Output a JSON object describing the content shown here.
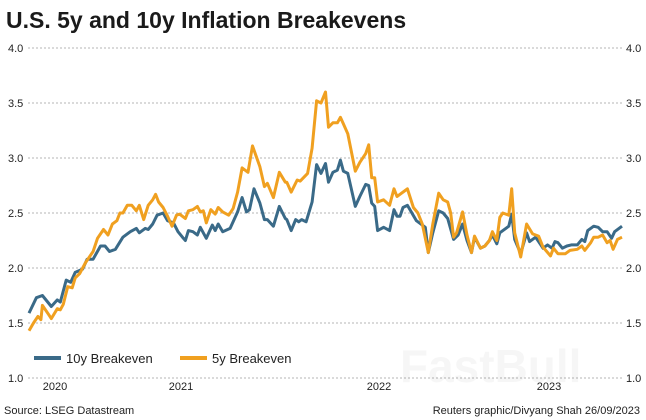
{
  "chart_data": {
    "type": "line",
    "title": "U.S. 5y and 10y Inflation Breakevens",
    "xlabel": "",
    "ylabel": "",
    "ylim": [
      1.0,
      4.0
    ],
    "yticks": [
      "1.0",
      "1.5",
      "2.0",
      "2.5",
      "3.0",
      "3.5",
      "4.0"
    ],
    "xticks": [
      "2020",
      "2021",
      "2022",
      "2023"
    ],
    "y_axis_sides": "both",
    "grid": "horizontal dashed",
    "legend_position": "bottom-left",
    "source": "Source: LSEG Datastream",
    "credit": "Reuters graphic/Divyang Shah 26/09/2023",
    "watermark": "FastBull",
    "series": [
      {
        "name": "10y Breakeven",
        "color": "#3a6a88",
        "points": [
          [
            2019.75,
            1.59
          ],
          [
            2019.8,
            1.73
          ],
          [
            2019.84,
            1.75
          ],
          [
            2019.9,
            1.65
          ],
          [
            2019.94,
            1.71
          ],
          [
            2019.96,
            1.69
          ],
          [
            2020.0,
            1.89
          ],
          [
            2020.03,
            1.87
          ],
          [
            2020.06,
            1.96
          ],
          [
            2020.11,
            1.99
          ],
          [
            2020.14,
            2.08
          ],
          [
            2020.18,
            2.08
          ],
          [
            2020.23,
            2.2
          ],
          [
            2020.26,
            2.2
          ],
          [
            2020.29,
            2.15
          ],
          [
            2020.33,
            2.17
          ],
          [
            2020.38,
            2.28
          ],
          [
            2020.43,
            2.33
          ],
          [
            2020.47,
            2.36
          ],
          [
            2020.49,
            2.32
          ],
          [
            2020.53,
            2.36
          ],
          [
            2020.55,
            2.35
          ],
          [
            2020.58,
            2.4
          ],
          [
            2020.61,
            2.48
          ],
          [
            2020.65,
            2.5
          ],
          [
            2020.68,
            2.43
          ],
          [
            2020.72,
            2.41
          ],
          [
            2020.75,
            2.33
          ],
          [
            2020.78,
            2.28
          ],
          [
            2020.8,
            2.25
          ],
          [
            2020.82,
            2.34
          ],
          [
            2020.85,
            2.33
          ],
          [
            2020.88,
            2.3
          ],
          [
            2020.9,
            2.37
          ],
          [
            2020.94,
            2.27
          ],
          [
            2020.98,
            2.39
          ],
          [
            2021.0,
            2.34
          ],
          [
            2021.02,
            2.4
          ],
          [
            2021.05,
            2.33
          ],
          [
            2021.1,
            2.36
          ],
          [
            2021.15,
            2.51
          ],
          [
            2021.18,
            2.64
          ],
          [
            2021.21,
            2.51
          ],
          [
            2021.23,
            2.53
          ],
          [
            2021.26,
            2.72
          ],
          [
            2021.3,
            2.59
          ],
          [
            2021.33,
            2.44
          ],
          [
            2021.35,
            2.44
          ],
          [
            2021.39,
            2.38
          ],
          [
            2021.43,
            2.56
          ],
          [
            2021.47,
            2.45
          ],
          [
            2021.48,
            2.44
          ],
          [
            2021.51,
            2.34
          ],
          [
            2021.54,
            2.44
          ],
          [
            2021.56,
            2.42
          ],
          [
            2021.58,
            2.44
          ],
          [
            2021.61,
            2.42
          ],
          [
            2021.65,
            2.6
          ],
          [
            2021.68,
            2.94
          ],
          [
            2021.71,
            2.86
          ],
          [
            2021.74,
            2.95
          ],
          [
            2021.76,
            2.78
          ],
          [
            2021.79,
            2.87
          ],
          [
            2021.82,
            2.89
          ],
          [
            2021.84,
            2.98
          ],
          [
            2021.86,
            2.88
          ],
          [
            2021.89,
            2.86
          ],
          [
            2021.94,
            2.56
          ],
          [
            2021.97,
            2.65
          ],
          [
            2022.01,
            2.76
          ],
          [
            2022.03,
            2.75
          ],
          [
            2022.05,
            2.59
          ],
          [
            2022.07,
            2.56
          ],
          [
            2022.09,
            2.34
          ],
          [
            2022.13,
            2.37
          ],
          [
            2022.17,
            2.34
          ],
          [
            2022.2,
            2.53
          ],
          [
            2022.22,
            2.47
          ],
          [
            2022.24,
            2.47
          ],
          [
            2022.26,
            2.55
          ],
          [
            2022.29,
            2.57
          ],
          [
            2022.32,
            2.5
          ],
          [
            2022.35,
            2.43
          ],
          [
            2022.39,
            2.39
          ],
          [
            2022.41,
            2.37
          ],
          [
            2022.43,
            2.14
          ],
          [
            2022.46,
            2.32
          ],
          [
            2022.5,
            2.52
          ],
          [
            2022.53,
            2.5
          ],
          [
            2022.56,
            2.45
          ],
          [
            2022.6,
            2.26
          ],
          [
            2022.63,
            2.3
          ],
          [
            2022.66,
            2.4
          ],
          [
            2022.69,
            2.25
          ],
          [
            2022.72,
            2.14
          ],
          [
            2022.74,
            2.28
          ],
          [
            2022.78,
            2.18
          ],
          [
            2022.81,
            2.2
          ],
          [
            2022.84,
            2.25
          ],
          [
            2022.86,
            2.3
          ],
          [
            2022.89,
            2.22
          ],
          [
            2022.91,
            2.32
          ],
          [
            2022.95,
            2.36
          ],
          [
            2022.97,
            2.38
          ],
          [
            2022.99,
            2.49
          ],
          [
            2023.01,
            2.26
          ],
          [
            2023.05,
            2.13
          ],
          [
            2023.09,
            2.32
          ],
          [
            2023.11,
            2.24
          ],
          [
            2023.15,
            2.28
          ],
          [
            2023.18,
            2.22
          ],
          [
            2023.2,
            2.18
          ],
          [
            2023.23,
            2.21
          ],
          [
            2023.26,
            2.18
          ],
          [
            2023.28,
            2.24
          ],
          [
            2023.3,
            2.23
          ],
          [
            2023.33,
            2.18
          ],
          [
            2023.36,
            2.2
          ],
          [
            2023.39,
            2.21
          ],
          [
            2023.43,
            2.21
          ],
          [
            2023.46,
            2.26
          ],
          [
            2023.48,
            2.24
          ],
          [
            2023.5,
            2.34
          ],
          [
            2023.54,
            2.38
          ],
          [
            2023.57,
            2.37
          ],
          [
            2023.6,
            2.33
          ],
          [
            2023.63,
            2.33
          ],
          [
            2023.66,
            2.27
          ],
          [
            2023.68,
            2.33
          ],
          [
            2023.73,
            2.38
          ]
        ]
      },
      {
        "name": "5y Breakeven",
        "color": "#f0a020",
        "points": [
          [
            2019.75,
            1.43
          ],
          [
            2019.78,
            1.5
          ],
          [
            2019.81,
            1.56
          ],
          [
            2019.83,
            1.53
          ],
          [
            2019.84,
            1.66
          ],
          [
            2019.88,
            1.58
          ],
          [
            2019.9,
            1.54
          ],
          [
            2019.94,
            1.63
          ],
          [
            2019.96,
            1.62
          ],
          [
            2019.98,
            1.67
          ],
          [
            2020.01,
            1.83
          ],
          [
            2020.04,
            1.82
          ],
          [
            2020.06,
            1.91
          ],
          [
            2020.09,
            1.95
          ],
          [
            2020.13,
            2.05
          ],
          [
            2020.15,
            2.09
          ],
          [
            2020.18,
            2.15
          ],
          [
            2020.21,
            2.27
          ],
          [
            2020.25,
            2.35
          ],
          [
            2020.28,
            2.3
          ],
          [
            2020.31,
            2.4
          ],
          [
            2020.34,
            2.43
          ],
          [
            2020.36,
            2.5
          ],
          [
            2020.38,
            2.5
          ],
          [
            2020.41,
            2.57
          ],
          [
            2020.44,
            2.57
          ],
          [
            2020.47,
            2.52
          ],
          [
            2020.49,
            2.57
          ],
          [
            2020.52,
            2.44
          ],
          [
            2020.55,
            2.57
          ],
          [
            2020.58,
            2.62
          ],
          [
            2020.6,
            2.67
          ],
          [
            2020.62,
            2.6
          ],
          [
            2020.65,
            2.55
          ],
          [
            2020.68,
            2.47
          ],
          [
            2020.71,
            2.38
          ],
          [
            2020.74,
            2.48
          ],
          [
            2020.76,
            2.49
          ],
          [
            2020.8,
            2.45
          ],
          [
            2020.82,
            2.52
          ],
          [
            2020.85,
            2.53
          ],
          [
            2020.88,
            2.56
          ],
          [
            2020.9,
            2.51
          ],
          [
            2020.92,
            2.52
          ],
          [
            2020.94,
            2.41
          ],
          [
            2020.97,
            2.53
          ],
          [
            2021.0,
            2.49
          ],
          [
            2021.02,
            2.55
          ],
          [
            2021.05,
            2.51
          ],
          [
            2021.09,
            2.48
          ],
          [
            2021.12,
            2.54
          ],
          [
            2021.15,
            2.69
          ],
          [
            2021.18,
            2.91
          ],
          [
            2021.22,
            2.87
          ],
          [
            2021.25,
            3.11
          ],
          [
            2021.3,
            2.92
          ],
          [
            2021.33,
            2.74
          ],
          [
            2021.35,
            2.77
          ],
          [
            2021.39,
            2.64
          ],
          [
            2021.43,
            2.87
          ],
          [
            2021.47,
            2.78
          ],
          [
            2021.48,
            2.78
          ],
          [
            2021.51,
            2.69
          ],
          [
            2021.55,
            2.8
          ],
          [
            2021.57,
            2.79
          ],
          [
            2021.62,
            2.86
          ],
          [
            2021.65,
            3.09
          ],
          [
            2021.68,
            3.52
          ],
          [
            2021.71,
            3.5
          ],
          [
            2021.74,
            3.6
          ],
          [
            2021.76,
            3.28
          ],
          [
            2021.79,
            3.32
          ],
          [
            2021.82,
            3.32
          ],
          [
            2021.84,
            3.37
          ],
          [
            2021.86,
            3.31
          ],
          [
            2021.89,
            3.22
          ],
          [
            2021.94,
            2.88
          ],
          [
            2021.97,
            2.96
          ],
          [
            2022.01,
            3.04
          ],
          [
            2022.03,
            3.12
          ],
          [
            2022.05,
            2.82
          ],
          [
            2022.07,
            2.82
          ],
          [
            2022.09,
            2.6
          ],
          [
            2022.13,
            2.62
          ],
          [
            2022.17,
            2.57
          ],
          [
            2022.2,
            2.72
          ],
          [
            2022.22,
            2.65
          ],
          [
            2022.24,
            2.67
          ],
          [
            2022.27,
            2.7
          ],
          [
            2022.29,
            2.72
          ],
          [
            2022.33,
            2.55
          ],
          [
            2022.36,
            2.5
          ],
          [
            2022.39,
            2.4
          ],
          [
            2022.43,
            2.14
          ],
          [
            2022.46,
            2.4
          ],
          [
            2022.5,
            2.68
          ],
          [
            2022.53,
            2.62
          ],
          [
            2022.56,
            2.6
          ],
          [
            2022.58,
            2.5
          ],
          [
            2022.6,
            2.28
          ],
          [
            2022.62,
            2.32
          ],
          [
            2022.66,
            2.51
          ],
          [
            2022.69,
            2.3
          ],
          [
            2022.72,
            2.14
          ],
          [
            2022.74,
            2.29
          ],
          [
            2022.78,
            2.18
          ],
          [
            2022.81,
            2.2
          ],
          [
            2022.84,
            2.25
          ],
          [
            2022.86,
            2.33
          ],
          [
            2022.89,
            2.25
          ],
          [
            2022.91,
            2.46
          ],
          [
            2022.93,
            2.5
          ],
          [
            2022.97,
            2.48
          ],
          [
            2022.99,
            2.72
          ],
          [
            2023.01,
            2.32
          ],
          [
            2023.05,
            2.1
          ],
          [
            2023.09,
            2.4
          ],
          [
            2023.13,
            2.31
          ],
          [
            2023.17,
            2.29
          ],
          [
            2023.2,
            2.19
          ],
          [
            2023.25,
            2.11
          ],
          [
            2023.27,
            2.18
          ],
          [
            2023.3,
            2.13
          ],
          [
            2023.35,
            2.13
          ],
          [
            2023.38,
            2.16
          ],
          [
            2023.43,
            2.17
          ],
          [
            2023.46,
            2.2
          ],
          [
            2023.48,
            2.16
          ],
          [
            2023.52,
            2.23
          ],
          [
            2023.54,
            2.28
          ],
          [
            2023.57,
            2.28
          ],
          [
            2023.6,
            2.3
          ],
          [
            2023.63,
            2.23
          ],
          [
            2023.65,
            2.25
          ],
          [
            2023.67,
            2.17
          ],
          [
            2023.7,
            2.26
          ],
          [
            2023.73,
            2.28
          ]
        ]
      }
    ]
  }
}
